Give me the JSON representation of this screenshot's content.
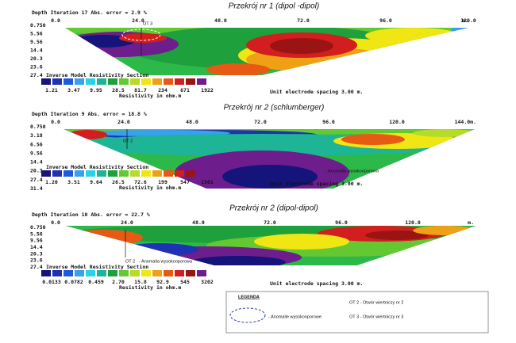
{
  "sections": [
    {
      "title": "Przekrój nr 1 (dipol -dipol)",
      "header": "Depth   Iteration 17 Abs. error = 2.9 %",
      "x_labels": [
        "0.0",
        "24.0",
        "48.0",
        "72.0",
        "96.0",
        "120.0",
        "m."
      ],
      "depths": [
        "0.750",
        "5.56",
        "9.56",
        "14.4",
        "20.3",
        "23.6",
        "27.4"
      ],
      "legend_title": "Inverse Model Resistivity Section",
      "scale": [
        "1.21",
        "3.47",
        "9.95",
        "28.5",
        "81.7",
        "234",
        "671",
        "1922"
      ],
      "units": "Resistivity in ohm.m",
      "spacing": "Unit electrode spacing 3.00 m.",
      "annotations": [
        "OT 3"
      ]
    },
    {
      "title": "Przekrój nr 2 (schlumberger)",
      "header": "Depth   Iteration 9 Abs. error = 18.8 %",
      "x_labels": [
        "0.0",
        "24.0",
        "48.0",
        "72.0",
        "96.0",
        "120.0",
        "144.0m."
      ],
      "depths": [
        "0.750",
        "3.18",
        "6.56",
        "9.56",
        "14.4",
        "20.3",
        "27.4",
        "31.4"
      ],
      "legend_title": "Inverse Model Resistivity Section",
      "scale": [
        "1.20",
        "3.51",
        "9.64",
        "26.5",
        "72.6",
        "199",
        "547",
        "1501"
      ],
      "units": "Resistivity in ohm.m",
      "spacing": "Unit electrode spacing 3.00 m.",
      "annotations": [
        "OT 2",
        "- Anomalia wysokooporowa"
      ]
    },
    {
      "title": "Przekrój nr 2 (dipol-dipol)",
      "header": "Depth   Iteration 10 Abs. error = 22.7 %",
      "x_labels": [
        "0.0",
        "24.0",
        "48.0",
        "72.0",
        "96.0",
        "120.0",
        "m."
      ],
      "depths": [
        "0.750",
        "5.56",
        "9.56",
        "14.4",
        "20.3",
        "23.6",
        "27.4"
      ],
      "legend_title": "Inverse Model Resistivity Section",
      "scale": [
        "0.0133",
        "0.0782",
        "0.459",
        "2.70",
        "15.8",
        "92.9",
        "545",
        "3202"
      ],
      "units": "Resistivity in ohm.m",
      "spacing": "Unit electrode spacing 3.00 m.",
      "annotations": [
        "OT 2",
        "- Anomalia wysokooporowa"
      ]
    }
  ],
  "legend": {
    "title": "LEGENDA",
    "items": [
      "- Anomalie wysokooporowe",
      "OT 2 - Otwór wiertniczy nr 2",
      "OT 3 - Otwór wiertniczy nr 3"
    ]
  }
}
